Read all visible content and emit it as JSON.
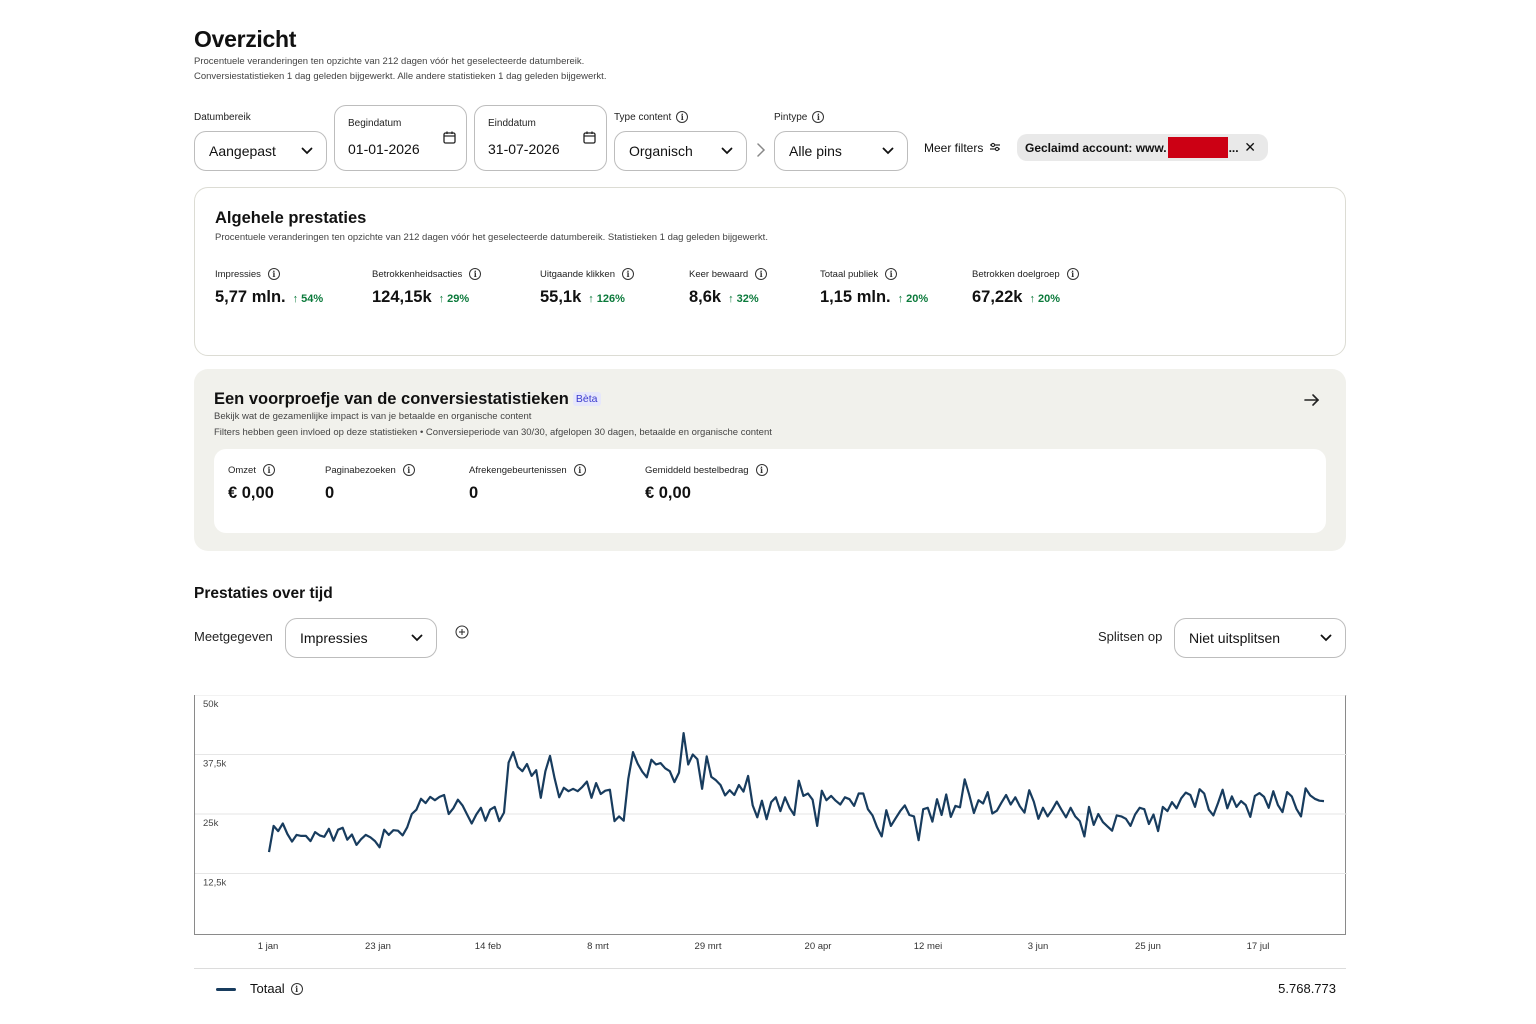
{
  "header": {
    "title": "Overzicht",
    "subtitle_1": "Procentuele veranderingen ten opzichte van 212 dagen vóór het geselecteerde datumbereik.",
    "subtitle_2": "Conversiestatistieken 1 dag geleden bijgewerkt. Alle andere statistieken 1 dag geleden bijgewerkt."
  },
  "filters": {
    "date_range_label": "Datumbereik",
    "date_range_value": "Aangepast",
    "start_label": "Begindatum",
    "start_value": "01-01-2026",
    "end_label": "Einddatum",
    "end_value": "31-07-2026",
    "content_type_label": "Type content",
    "content_type_value": "Organisch",
    "pin_type_label": "Pintype",
    "pin_type_value": "Alle pins",
    "more_filters": "Meer filters",
    "account_chip": "Geclaimd account: www.",
    "account_chip_ellipsis": "..."
  },
  "overall": {
    "title": "Algehele prestaties",
    "subtitle": "Procentuele veranderingen ten opzichte van 212 dagen vóór het geselecteerde datumbereik. Statistieken 1 dag geleden bijgewerkt.",
    "metrics": [
      {
        "label": "Impressies",
        "value": "5,77 mln.",
        "change": "54%"
      },
      {
        "label": "Betrokkenheidsacties",
        "value": "124,15k",
        "change": "29%"
      },
      {
        "label": "Uitgaande klikken",
        "value": "55,1k",
        "change": "126%"
      },
      {
        "label": "Keer bewaard",
        "value": "8,6k",
        "change": "32%"
      },
      {
        "label": "Totaal publiek",
        "value": "1,15 mln.",
        "change": "20%"
      },
      {
        "label": "Betrokken doelgroep",
        "value": "67,22k",
        "change": "20%"
      }
    ]
  },
  "conversion": {
    "title": "Een voorproefje van de conversiestatistieken",
    "badge": "Bèta",
    "subtitle_1": "Bekijk wat de gezamenlijke impact is van je betaalde en organische content",
    "subtitle_2": "Filters hebben geen invloed op deze statistieken • Conversieperiode van 30/30, afgelopen 30 dagen, betaalde en organische content",
    "metrics": [
      {
        "label": "Omzet",
        "value": "€ 0,00"
      },
      {
        "label": "Paginabezoeken",
        "value": "0"
      },
      {
        "label": "Afrekengebeurtenissen",
        "value": "0"
      },
      {
        "label": "Gemiddeld bestelbedrag",
        "value": "€ 0,00"
      }
    ]
  },
  "performance": {
    "title": "Prestaties over tijd",
    "metric_label": "Meetgegeven",
    "metric_value": "Impressies",
    "split_label": "Splitsen op",
    "split_value": "Niet uitsplitsen",
    "legend_name": "Totaal",
    "legend_total": "5.768.773"
  },
  "colors": {
    "line": "#183c5e",
    "positive": "#0b7a3b",
    "redaction": "#cc0014",
    "beta_text": "#3a3acf"
  },
  "chart_data": {
    "type": "line",
    "title": "",
    "xlabel": "",
    "ylabel": "",
    "ylim": [
      0,
      50000
    ],
    "yticks": [
      12500,
      25000,
      37500,
      50000
    ],
    "ytick_labels": [
      "12,5k",
      "25k",
      "37,5k",
      "50k"
    ],
    "xtick_labels": [
      "1 jan",
      "23 jan",
      "14 feb",
      "8 mrt",
      "29 mrt",
      "20 apr",
      "12 mei",
      "3 jun",
      "25 jun",
      "17 jul"
    ],
    "grid": true,
    "x_start": "2026-01-01",
    "x_end": "2026-07-31",
    "series": [
      {
        "name": "Totaal",
        "values": [
          17000,
          22500,
          21400,
          23000,
          20800,
          19200,
          20600,
          20400,
          20400,
          19300,
          21200,
          20500,
          20200,
          21900,
          19400,
          21700,
          22100,
          19600,
          20700,
          18500,
          19700,
          20600,
          20100,
          19300,
          18000,
          21700,
          20600,
          21600,
          21500,
          20500,
          22200,
          25000,
          25900,
          28200,
          27300,
          28600,
          27900,
          28600,
          29000,
          25000,
          26200,
          28000,
          26800,
          24900,
          23000,
          24900,
          26300,
          23600,
          25900,
          26500,
          23500,
          25300,
          35800,
          38000,
          34900,
          34000,
          35500,
          33000,
          34200,
          28400,
          34000,
          37200,
          32500,
          28500,
          30500,
          29800,
          30300,
          29800,
          30700,
          31800,
          28400,
          31500,
          29200,
          29900,
          30100,
          23500,
          24500,
          23600,
          32400,
          38000,
          35600,
          33900,
          32700,
          36400,
          35400,
          35700,
          34600,
          34000,
          31700,
          33700,
          42000,
          35400,
          37500,
          36500,
          30300,
          37100,
          32800,
          32100,
          31100,
          28900,
          30000,
          29000,
          31100,
          29700,
          33000,
          26800,
          24300,
          27800,
          23900,
          27500,
          28500,
          25600,
          28500,
          26300,
          24800,
          32000,
          28800,
          29300,
          28000,
          22500,
          29900,
          27900,
          28800,
          27800,
          27000,
          28500,
          28100,
          26700,
          29300,
          29300,
          26000,
          24700,
          22200,
          20300,
          25800,
          22500,
          24100,
          25600,
          26800,
          24800,
          24500,
          19500,
          26000,
          26300,
          23400,
          28100,
          24800,
          29100,
          24400,
          26700,
          26400,
          32300,
          29000,
          25200,
          27900,
          27200,
          29600,
          25100,
          25700,
          27400,
          29000,
          27000,
          28500,
          26600,
          25300,
          30000,
          27600,
          24000,
          26300,
          24500,
          25900,
          27600,
          25900,
          24300,
          26300,
          24500,
          23500,
          20300,
          26500,
          22700,
          25000,
          23300,
          22400,
          21500,
          24700,
          24500,
          24000,
          22500,
          24900,
          26300,
          26000,
          22900,
          24900,
          21400,
          26500,
          25600,
          27500,
          26200,
          28300,
          29500,
          29000,
          26500,
          30200,
          29300,
          25900,
          24700,
          27300,
          30100,
          26200,
          28700,
          26500,
          27700,
          26900,
          24400,
          28800,
          29400,
          28600,
          26300,
          29800,
          26900,
          25400,
          29600,
          28700,
          26100,
          24500,
          30400,
          28900,
          28200,
          27800,
          27700
        ]
      }
    ]
  }
}
